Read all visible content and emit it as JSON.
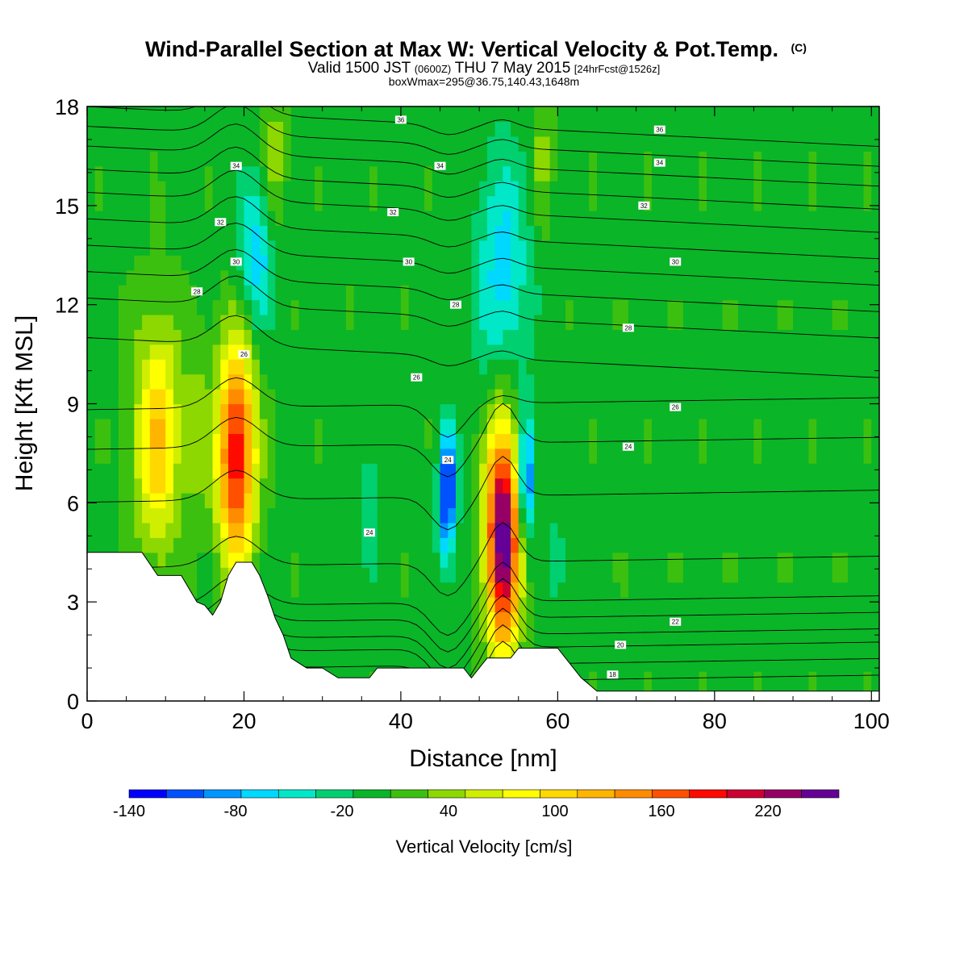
{
  "title": {
    "line1": "Wind-Parallel Section at Max W: Vertical Velocity & Pot.Temp.",
    "line1_mark": "(C)",
    "line2_a": "Valid 1500 JST",
    "line2_b": "(0600Z)",
    "line2_c": "THU 7 May 2015",
    "line2_d": "[24hrFcst@1526z]",
    "line3": "boxWmax=295@36.75,140.43,1648m"
  },
  "chart_data": {
    "type": "heatmap",
    "xlabel": "Distance [nm]",
    "ylabel": "Height [Kft MSL]",
    "xlim": [
      0,
      101
    ],
    "ylim": [
      0,
      18
    ],
    "x_ticks": [
      "0",
      "20",
      "40",
      "60",
      "80",
      "100"
    ],
    "x_tick_values": [
      0,
      20,
      40,
      60,
      80,
      100
    ],
    "y_ticks": [
      "0",
      "3",
      "6",
      "9",
      "12",
      "15",
      "18"
    ],
    "y_tick_values": [
      0,
      3,
      6,
      9,
      12,
      15,
      18
    ],
    "colorbar": {
      "title": "Vertical Velocity [cm/s]",
      "min": -140,
      "max": 260,
      "step": 20,
      "tick_labels": [
        "-140",
        "-80",
        "-20",
        "40",
        "100",
        "160",
        "220"
      ],
      "tick_values": [
        -140,
        -80,
        -20,
        40,
        100,
        160,
        220
      ],
      "colors": [
        "#0000ff",
        "#0052ff",
        "#0096ff",
        "#00d8ff",
        "#00e8c8",
        "#00d070",
        "#0ab528",
        "#3cc010",
        "#8cd800",
        "#d0ef00",
        "#ffff00",
        "#ffd800",
        "#ffb400",
        "#ff8c00",
        "#ff5000",
        "#ff0a00",
        "#cc0032",
        "#960064",
        "#640096"
      ]
    },
    "background_value": -5,
    "features": [
      {
        "kind": "updraft",
        "x": 9,
        "h": 8.0,
        "value": 120
      },
      {
        "kind": "updraft",
        "x": 19,
        "h": 7.5,
        "value": 200
      },
      {
        "kind": "updraft",
        "x": 53,
        "h": 5.0,
        "value": 250
      },
      {
        "kind": "downdraft",
        "x": 46,
        "h": 6.3,
        "value": -120
      },
      {
        "kind": "downdraft",
        "x": 56,
        "h": 6.8,
        "value": -110
      },
      {
        "kind": "downdraft",
        "x": 22,
        "h": 13.5,
        "value": -65
      },
      {
        "kind": "downdraft",
        "x": 53,
        "h": 13.0,
        "value": -60
      }
    ],
    "terrain": [
      [
        0,
        4.5
      ],
      [
        7,
        4.5
      ],
      [
        9,
        3.8
      ],
      [
        12,
        3.8
      ],
      [
        14,
        3.0
      ],
      [
        15,
        2.9
      ],
      [
        16,
        2.6
      ],
      [
        17,
        3.0
      ],
      [
        18,
        3.8
      ],
      [
        19,
        4.2
      ],
      [
        21,
        4.2
      ],
      [
        22,
        3.8
      ],
      [
        23,
        3.2
      ],
      [
        24,
        2.5
      ],
      [
        25,
        2.0
      ],
      [
        26,
        1.3
      ],
      [
        28,
        1.0
      ],
      [
        30,
        1.0
      ],
      [
        32,
        0.7
      ],
      [
        36,
        0.7
      ],
      [
        37,
        1.0
      ],
      [
        42,
        1.0
      ],
      [
        48,
        1.0
      ],
      [
        49,
        0.7
      ],
      [
        50,
        1.0
      ],
      [
        51,
        1.3
      ],
      [
        54,
        1.3
      ],
      [
        55,
        1.6
      ],
      [
        60,
        1.6
      ],
      [
        61,
        1.3
      ],
      [
        62,
        1.0
      ],
      [
        63,
        0.7
      ],
      [
        64,
        0.5
      ],
      [
        65,
        0.3
      ],
      [
        70,
        0.3
      ],
      [
        101,
        0.3
      ]
    ],
    "theta_contours": [
      {
        "label": "18",
        "label_x": 67,
        "label_y": 0.8
      },
      {
        "label": "20",
        "label_x": 68,
        "label_y": 1.7
      },
      {
        "label": "22",
        "label_x": 75,
        "label_y": 2.4
      },
      {
        "label": "24",
        "label_x": 36,
        "label_y": 5.1
      },
      {
        "label": "24",
        "label_x": 46,
        "label_y": 7.3
      },
      {
        "label": "24",
        "label_x": 69,
        "label_y": 7.7
      },
      {
        "label": "26",
        "label_x": 75,
        "label_y": 8.9
      },
      {
        "label": "26",
        "label_x": 42,
        "label_y": 9.8
      },
      {
        "label": "26",
        "label_x": 20,
        "label_y": 10.5
      },
      {
        "label": "28",
        "label_x": 69,
        "label_y": 11.3
      },
      {
        "label": "28",
        "label_x": 47,
        "label_y": 12.0
      },
      {
        "label": "28",
        "label_x": 14,
        "label_y": 12.4
      },
      {
        "label": "30",
        "label_x": 19,
        "label_y": 13.3
      },
      {
        "label": "30",
        "label_x": 41,
        "label_y": 13.3
      },
      {
        "label": "30",
        "label_x": 75,
        "label_y": 13.3
      },
      {
        "label": "32",
        "label_x": 17,
        "label_y": 14.5
      },
      {
        "label": "32",
        "label_x": 39,
        "label_y": 14.8
      },
      {
        "label": "32",
        "label_x": 71,
        "label_y": 15.0
      },
      {
        "label": "34",
        "label_x": 19,
        "label_y": 16.2
      },
      {
        "label": "34",
        "label_x": 45,
        "label_y": 16.2
      },
      {
        "label": "34",
        "label_x": 73,
        "label_y": 16.3
      },
      {
        "label": "36",
        "label_x": 40,
        "label_y": 17.6
      },
      {
        "label": "36",
        "label_x": 73,
        "label_y": 17.3
      }
    ]
  }
}
